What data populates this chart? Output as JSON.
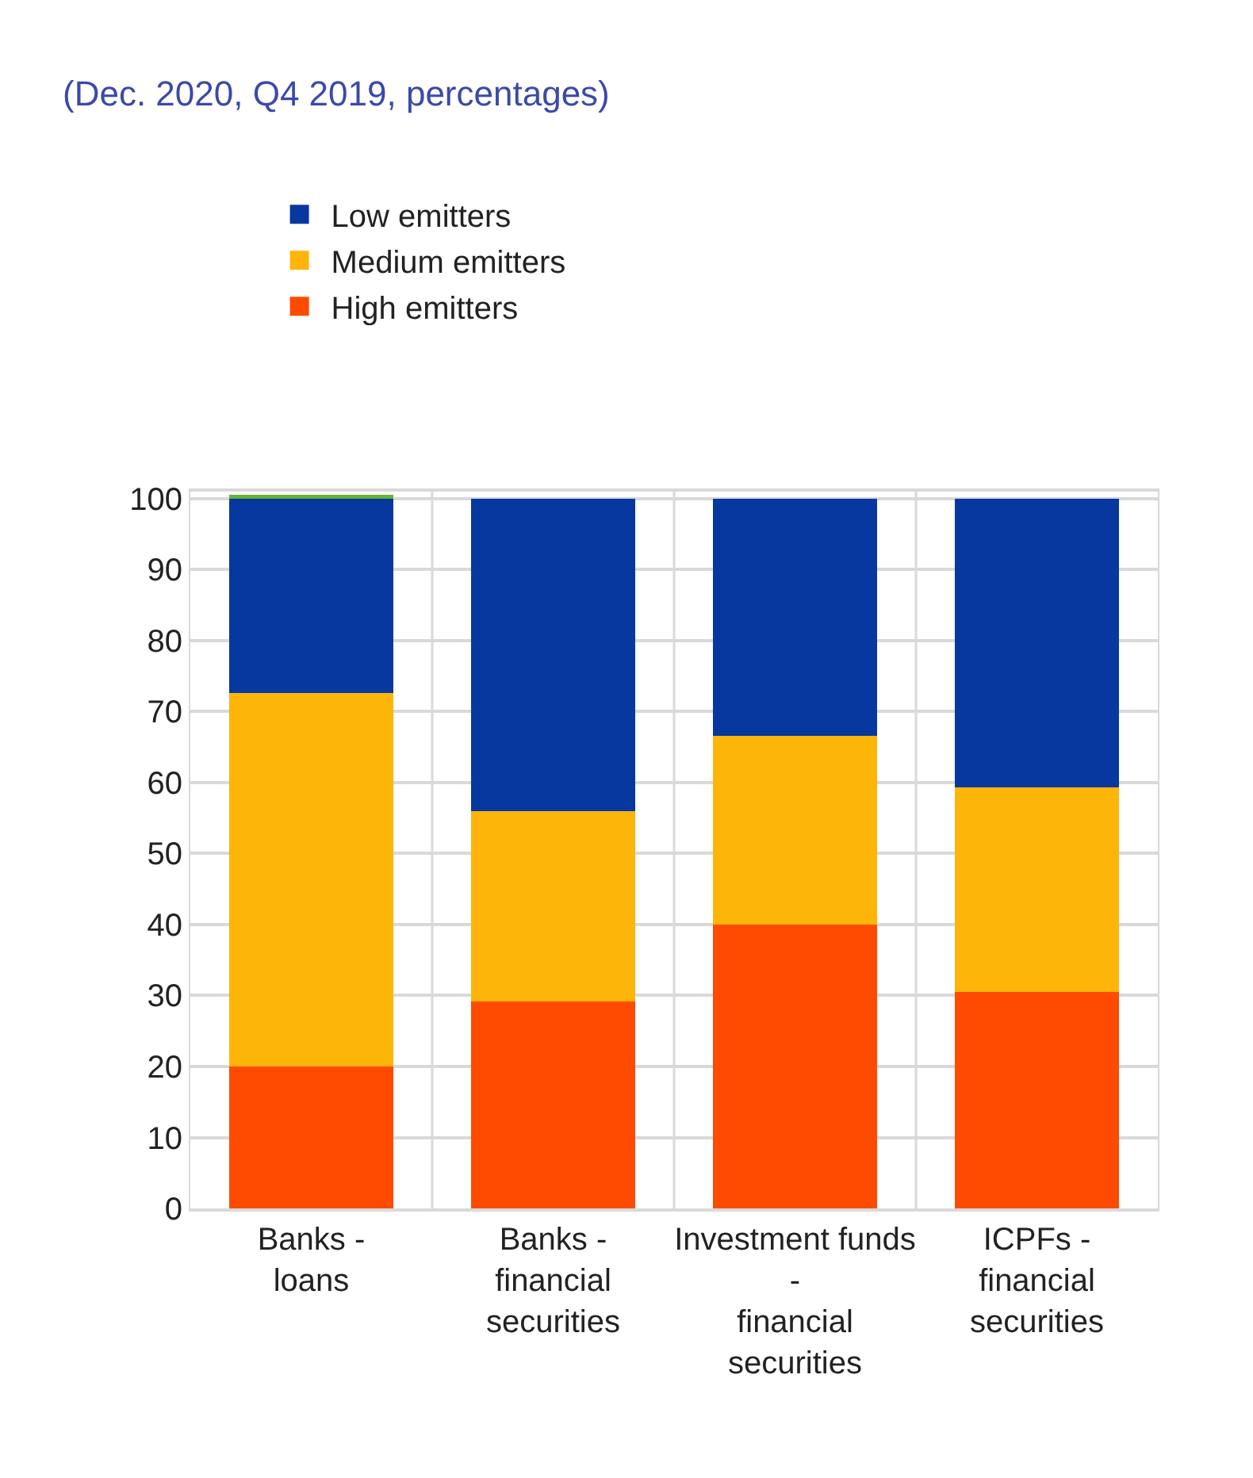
{
  "chart_data": {
    "type": "bar",
    "stacked": true,
    "title": "(Dec. 2020, Q4 2019, percentages)",
    "categories": [
      "Banks - loans",
      "Banks - financial securities",
      "Investment funds - financial securities",
      "ICPFs - financial securities"
    ],
    "series": [
      {
        "name": "High emitters",
        "color": "#ff4b00",
        "values": [
          20,
          29.2,
          40,
          30.5
        ]
      },
      {
        "name": "Medium emitters",
        "color": "#fdb50a",
        "values": [
          52.6,
          26.8,
          26.6,
          28.8
        ]
      },
      {
        "name": "Low emitters",
        "color": "#0638a0",
        "values": [
          27.4,
          44,
          33.4,
          40.7
        ]
      },
      {
        "color": "#65b32e",
        "values": [
          0.5,
          null,
          null,
          null
        ]
      }
    ],
    "ylim": [
      0,
      101
    ],
    "yticks": [
      0,
      10,
      20,
      30,
      40,
      50,
      60,
      70,
      80,
      90,
      100
    ],
    "grid": true,
    "legend": "top left"
  }
}
